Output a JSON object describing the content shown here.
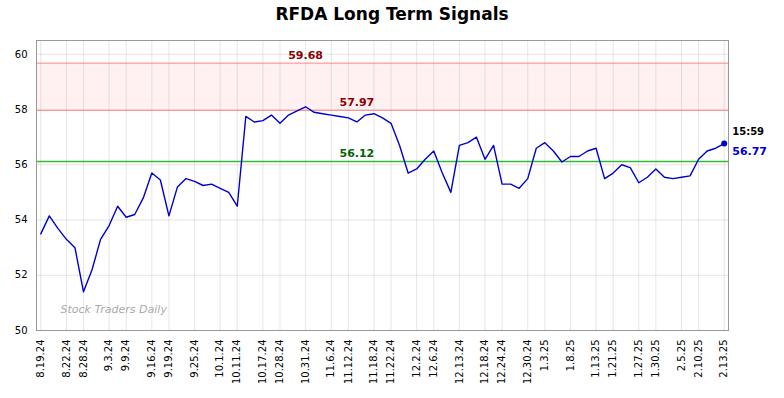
{
  "chart_data": {
    "type": "line",
    "title": "RFDA Long Term Signals",
    "color": "#0000CD",
    "categories": [
      "8.19.24",
      null,
      null,
      "8.22.24",
      null,
      "8.28.24",
      null,
      null,
      "9.3.24",
      null,
      "9.9.24",
      null,
      null,
      "9.16.24",
      null,
      "9.19.24",
      null,
      null,
      "9.25.24",
      null,
      null,
      "10.1.24",
      null,
      "10.11.24",
      null,
      null,
      "10.17.24",
      null,
      "10.28.24",
      null,
      null,
      "10.31.24",
      null,
      null,
      "11.6.24",
      null,
      "11.12.24",
      null,
      null,
      "11.18.24",
      null,
      "11.22.24",
      null,
      null,
      "12.2.24",
      null,
      "12.6.24",
      null,
      null,
      "12.13.24",
      null,
      null,
      "12.18.24",
      null,
      "12.24.24",
      null,
      null,
      "12.30.24",
      null,
      "1.3.25",
      null,
      null,
      "1.8.25",
      null,
      null,
      "1.13.25",
      null,
      "1.21.25",
      null,
      null,
      "1.27.25",
      null,
      "1.30.25",
      null,
      null,
      "2.5.25",
      null,
      "2.10.25",
      null,
      null,
      "2.13.25"
    ],
    "values": [
      53.5,
      54.15,
      53.7,
      53.3,
      53.0,
      51.4,
      52.2,
      53.3,
      53.8,
      54.5,
      54.1,
      54.2,
      54.8,
      55.7,
      55.45,
      54.15,
      55.2,
      55.5,
      55.4,
      55.25,
      55.3,
      55.15,
      55.0,
      54.5,
      57.75,
      57.55,
      57.6,
      57.8,
      57.5,
      57.8,
      57.95,
      58.1,
      57.9,
      57.85,
      57.8,
      57.75,
      57.7,
      57.55,
      57.8,
      57.85,
      57.7,
      57.5,
      56.7,
      55.7,
      55.85,
      56.2,
      56.5,
      55.7,
      55.0,
      56.7,
      56.8,
      57.0,
      56.2,
      56.7,
      55.3,
      55.3,
      55.15,
      55.5,
      56.6,
      56.8,
      56.5,
      56.1,
      56.3,
      56.3,
      56.5,
      56.6,
      55.5,
      55.7,
      56.0,
      55.9,
      55.35,
      55.55,
      55.85,
      55.55,
      55.5,
      55.55,
      55.6,
      56.2,
      56.5,
      56.6,
      56.77
    ],
    "hlines": [
      {
        "value": 59.68,
        "color": "#ff8888",
        "label": "59.68",
        "label_color": "darkred"
      },
      {
        "value": 57.97,
        "color": "#ff8888",
        "label": "57.97",
        "label_color": "darkred"
      },
      {
        "value": 56.12,
        "color": "#33bb33",
        "label": "56.12",
        "label_color": "darkgreen"
      }
    ],
    "band": {
      "from": 57.97,
      "to": 59.68,
      "color": "#ff8888"
    },
    "current": {
      "value": 56.77,
      "label": "56.77",
      "time_label": "15:59"
    },
    "watermark": "Stock Traders Daily",
    "ylim": [
      50,
      60.5
    ],
    "yticks": [
      50,
      52,
      54,
      56,
      58,
      60
    ],
    "grid": true
  }
}
